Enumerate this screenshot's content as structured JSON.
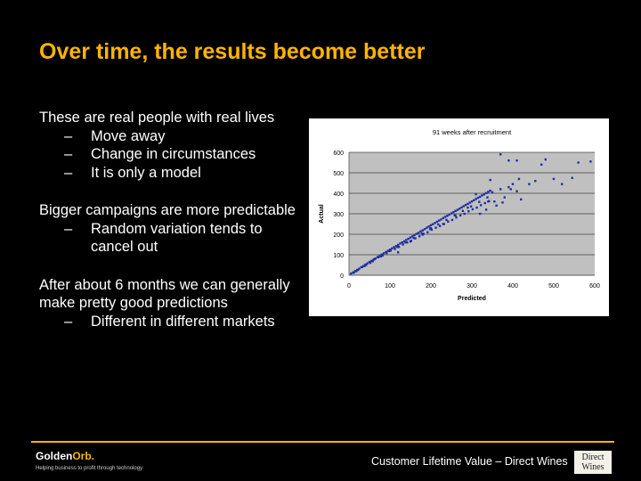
{
  "slide": {
    "title": "Over time, the results become better",
    "bullets": [
      {
        "text": "These are real people with real lives",
        "subs": [
          "Move away",
          "Change in circumstances",
          "It is only a model"
        ]
      },
      {
        "text": "Bigger campaigns are more predictable",
        "subs": [
          "Random variation tends to cancel out"
        ]
      },
      {
        "text": "After about 6 months we can generally make pretty good predictions",
        "subs": [
          "Different in different markets"
        ]
      }
    ],
    "dash": "–"
  },
  "footer": {
    "logo_left": "Golden",
    "logo_right": "Orb.",
    "tagline": "Helping business to profit through technology",
    "text": "Customer Lifetime Value – Direct Wines",
    "partner_logo_line1": "Direct",
    "partner_logo_line2": "Wines"
  },
  "colors": {
    "accent": "#ffb400",
    "marker": "#1f2fa0",
    "plot_bg": "#c0c0c0"
  },
  "chart_data": {
    "type": "scatter",
    "title": "91 weeks after recruitment",
    "xlabel": "Predicted",
    "ylabel": "Actual",
    "xlim": [
      0,
      600
    ],
    "ylim": [
      0,
      600
    ],
    "xticks": [
      0,
      100,
      200,
      300,
      400,
      500,
      600
    ],
    "yticks": [
      0,
      100,
      200,
      300,
      400,
      500,
      600
    ],
    "grid": true,
    "x": [
      5,
      10,
      15,
      20,
      25,
      30,
      35,
      40,
      45,
      50,
      55,
      60,
      65,
      70,
      75,
      80,
      85,
      90,
      95,
      100,
      105,
      110,
      115,
      120,
      125,
      130,
      135,
      140,
      145,
      150,
      155,
      160,
      165,
      170,
      175,
      180,
      185,
      190,
      195,
      200,
      205,
      210,
      215,
      220,
      225,
      230,
      235,
      240,
      245,
      250,
      255,
      260,
      265,
      270,
      275,
      280,
      285,
      290,
      295,
      300,
      305,
      310,
      315,
      320,
      325,
      330,
      335,
      340,
      345,
      12,
      22,
      32,
      42,
      52,
      62,
      72,
      82,
      92,
      102,
      112,
      122,
      132,
      142,
      152,
      162,
      172,
      182,
      192,
      202,
      212,
      222,
      232,
      242,
      252,
      262,
      272,
      282,
      292,
      302,
      312,
      322,
      332,
      342,
      18,
      38,
      58,
      78,
      98,
      118,
      138,
      158,
      178,
      198,
      218,
      238,
      258,
      278,
      298,
      318,
      338,
      120,
      150,
      180,
      200,
      230,
      260,
      290,
      320,
      340,
      310,
      350,
      355,
      360,
      370,
      380,
      390,
      400,
      410,
      420,
      335,
      345,
      375,
      395,
      415,
      440,
      455,
      470,
      480,
      590,
      560,
      545,
      500,
      520,
      410,
      390,
      370
    ],
    "y": [
      8,
      14,
      20,
      26,
      32,
      39,
      45,
      52,
      58,
      65,
      70,
      76,
      82,
      89,
      94,
      101,
      107,
      113,
      119,
      125,
      131,
      137,
      142,
      148,
      155,
      160,
      166,
      172,
      178,
      184,
      190,
      196,
      202,
      207,
      214,
      219,
      225,
      232,
      238,
      244,
      249,
      255,
      261,
      267,
      272,
      279,
      285,
      290,
      296,
      302,
      308,
      314,
      319,
      325,
      331,
      337,
      343,
      348,
      354,
      360,
      366,
      372,
      378,
      383,
      390,
      395,
      401,
      407,
      413,
      12,
      26,
      40,
      50,
      60,
      78,
      88,
      96,
      108,
      120,
      128,
      138,
      150,
      160,
      168,
      180,
      190,
      202,
      210,
      222,
      232,
      240,
      250,
      262,
      270,
      282,
      292,
      300,
      312,
      322,
      330,
      342,
      352,
      362,
      20,
      45,
      68,
      92,
      118,
      138,
      160,
      182,
      204,
      226,
      248,
      270,
      292,
      314,
      336,
      358,
      380,
      112,
      165,
      198,
      230,
      250,
      292,
      330,
      300,
      360,
      395,
      405,
      360,
      340,
      420,
      380,
      430,
      445,
      410,
      370,
      320,
      465,
      355,
      420,
      470,
      445,
      460,
      540,
      565,
      555,
      550,
      475,
      470,
      445,
      560,
      560,
      590
    ]
  }
}
